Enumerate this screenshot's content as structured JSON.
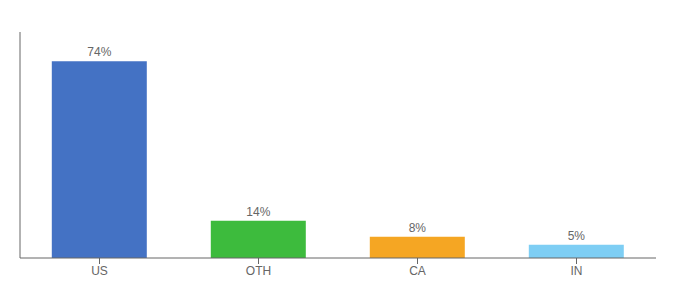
{
  "chart_data": {
    "type": "bar",
    "categories": [
      "US",
      "OTH",
      "CA",
      "IN"
    ],
    "values": [
      74,
      14,
      8,
      5
    ],
    "colors": [
      "#4472c4",
      "#3dbb3d",
      "#f5a623",
      "#7ecef4"
    ],
    "value_labels": [
      "74%",
      "14%",
      "8%",
      "5%"
    ],
    "data_labels": true,
    "ylim": [
      0,
      85
    ],
    "tick_labels": "x",
    "grid": false
  }
}
